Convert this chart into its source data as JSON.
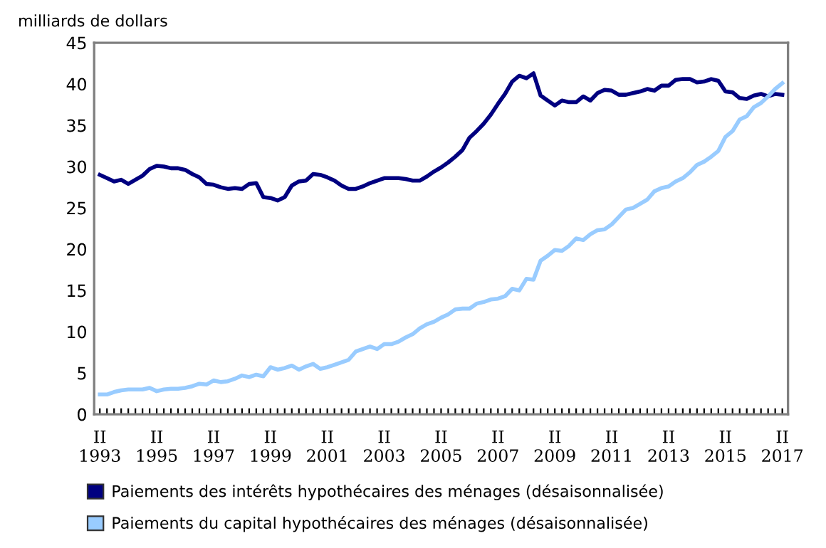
{
  "chart_data": {
    "type": "line",
    "ylabel": "milliards de dollars",
    "categories": [
      "II\n1993",
      null,
      null,
      null,
      null,
      null,
      null,
      null,
      "II\n1995",
      null,
      null,
      null,
      null,
      null,
      null,
      null,
      "II\n1997",
      null,
      null,
      null,
      null,
      null,
      null,
      null,
      "II\n1999",
      null,
      null,
      null,
      null,
      null,
      null,
      null,
      "II\n2001",
      null,
      null,
      null,
      null,
      null,
      null,
      null,
      "II\n2003",
      null,
      null,
      null,
      null,
      null,
      null,
      null,
      "II\n2005",
      null,
      null,
      null,
      null,
      null,
      null,
      null,
      "II\n2007",
      null,
      null,
      null,
      null,
      null,
      null,
      null,
      "II\n2009",
      null,
      null,
      null,
      null,
      null,
      null,
      null,
      "II\n2011",
      null,
      null,
      null,
      null,
      null,
      null,
      null,
      "II\n2013",
      null,
      null,
      null,
      null,
      null,
      null,
      null,
      "II\n2015",
      null,
      null,
      null,
      null,
      null,
      null,
      null,
      "II\n2017"
    ],
    "series": [
      {
        "name": "Paiements des intérêts hypothécaires des ménages (désaisonnalisée)",
        "color": "#000080",
        "values": [
          29.0,
          28.6,
          28.2,
          28.4,
          27.9,
          28.4,
          28.9,
          29.7,
          30.1,
          30.0,
          29.8,
          29.8,
          29.6,
          29.1,
          28.7,
          27.9,
          27.8,
          27.5,
          27.3,
          27.4,
          27.3,
          27.9,
          28.0,
          26.3,
          26.2,
          25.9,
          26.3,
          27.7,
          28.2,
          28.3,
          29.1,
          29.0,
          28.7,
          28.3,
          27.7,
          27.3,
          27.3,
          27.6,
          28.0,
          28.3,
          28.6,
          28.6,
          28.6,
          28.5,
          28.3,
          28.3,
          28.8,
          29.4,
          29.9,
          30.5,
          31.2,
          32.0,
          33.5,
          34.3,
          35.2,
          36.3,
          37.6,
          38.8,
          40.3,
          41.0,
          40.7,
          41.3,
          38.6,
          38.0,
          37.4,
          38.0,
          37.8,
          37.8,
          38.5,
          38.0,
          38.9,
          39.3,
          39.2,
          38.7,
          38.7,
          38.9,
          39.1,
          39.4,
          39.2,
          39.8,
          39.8,
          40.5,
          40.6,
          40.6,
          40.2,
          40.3,
          40.6,
          40.4,
          39.1,
          39.0,
          38.3,
          38.2,
          38.6,
          38.8,
          38.5,
          38.8,
          38.7
        ]
      },
      {
        "name": "Paiements du capital hypothécaires des ménages (désaisonnalisée)",
        "color": "#99ccff",
        "values": [
          2.4,
          2.4,
          2.7,
          2.9,
          3.0,
          3.0,
          3.0,
          3.2,
          2.8,
          3.0,
          3.1,
          3.1,
          3.2,
          3.4,
          3.7,
          3.6,
          4.1,
          3.9,
          4.0,
          4.3,
          4.7,
          4.5,
          4.8,
          4.6,
          5.7,
          5.4,
          5.6,
          5.9,
          5.4,
          5.8,
          6.1,
          5.5,
          5.7,
          6.0,
          6.3,
          6.6,
          7.6,
          7.9,
          8.2,
          7.9,
          8.5,
          8.5,
          8.8,
          9.3,
          9.7,
          10.4,
          10.9,
          11.2,
          11.7,
          12.1,
          12.7,
          12.8,
          12.8,
          13.4,
          13.6,
          13.9,
          14.0,
          14.3,
          15.2,
          15.0,
          16.4,
          16.3,
          18.6,
          19.2,
          19.9,
          19.8,
          20.4,
          21.3,
          21.1,
          21.8,
          22.3,
          22.4,
          23.0,
          23.9,
          24.8,
          25.0,
          25.5,
          26.0,
          27.0,
          27.4,
          27.6,
          28.2,
          28.6,
          29.3,
          30.2,
          30.6,
          31.2,
          31.9,
          33.6,
          34.3,
          35.7,
          36.1,
          37.2,
          37.7,
          38.5,
          39.4,
          40.1
        ]
      }
    ],
    "ylim": [
      0,
      45
    ],
    "yticks": [
      0,
      5,
      10,
      15,
      20,
      25,
      30,
      35,
      40,
      45
    ],
    "grid": false,
    "legend": "bottom",
    "marker": "none",
    "line_style": "solid"
  }
}
